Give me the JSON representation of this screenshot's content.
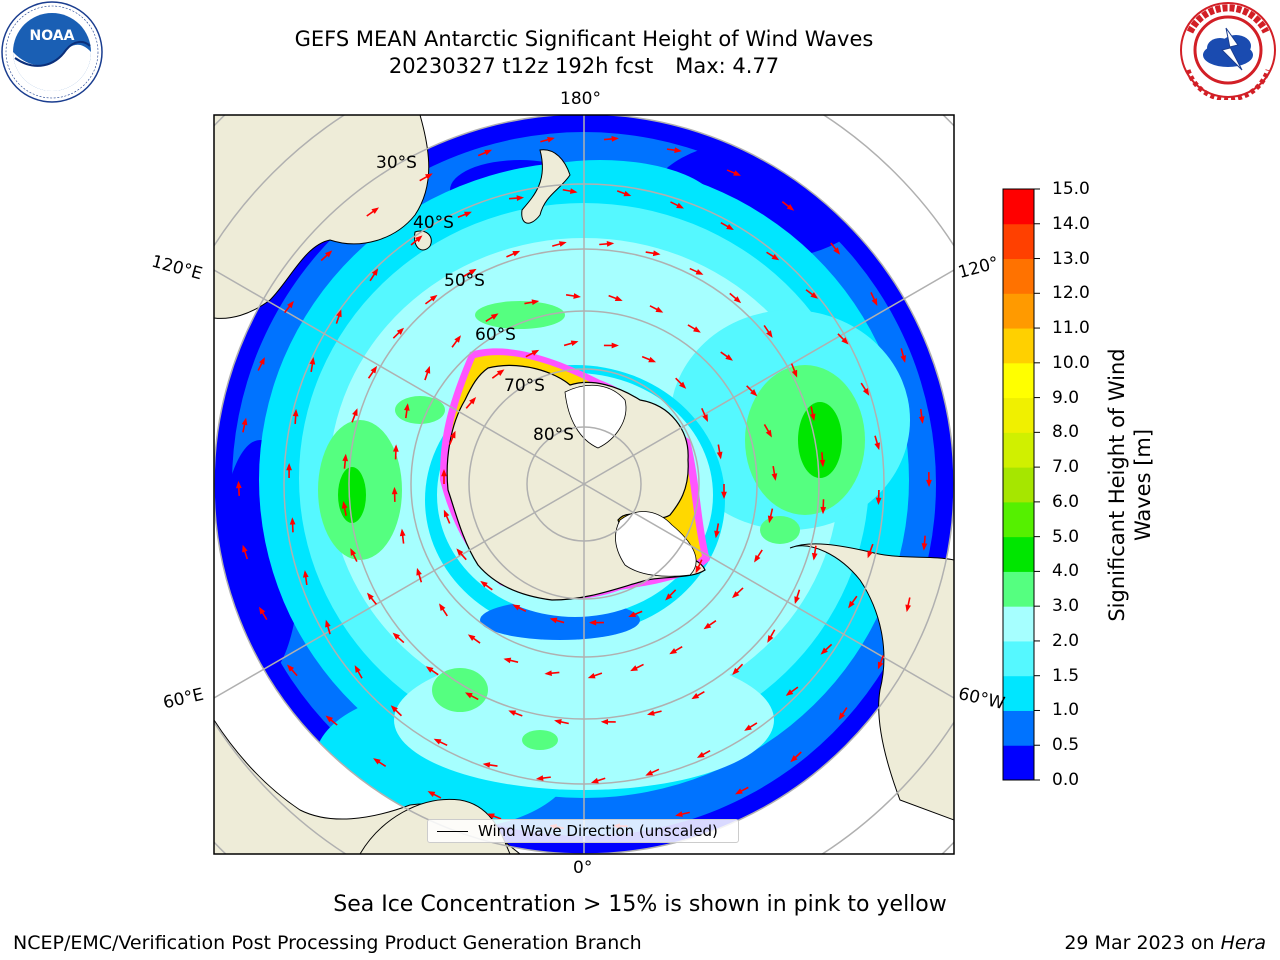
{
  "title": {
    "line1": "GEFS MEAN Antarctic Significant Height of Wind Waves",
    "date": "20230327 t12z 192h fcst",
    "max": "Max: 4.77"
  },
  "logos": {
    "left": {
      "icon": "noaa-logo",
      "text": "NOAA"
    },
    "right": {
      "icon": "national-weather-service-logo"
    }
  },
  "map": {
    "projection": "south-polar-stereographic",
    "lon_labels": [
      "180°",
      "120°E",
      "120°",
      "60°E",
      "60°W",
      "0°"
    ],
    "lat_labels": [
      "30°S",
      "40°S",
      "50°S",
      "60°S",
      "70°S",
      "80°S"
    ],
    "legend_text": "Wind Wave Direction (unscaled)",
    "arrow_color": "#ff0000",
    "land_color": "#eeecd8",
    "ice_colors": [
      "#ff55ff",
      "#ffd800"
    ]
  },
  "colorbar": {
    "title": "Significant Height of Wind Waves [m]",
    "title_line1": "Significant Height of Wind",
    "title_line2": "Waves [m]",
    "ticks": [
      "0.0",
      "0.5",
      "1.0",
      "1.5",
      "2.0",
      "3.0",
      "4.0",
      "5.0",
      "6.0",
      "7.0",
      "8.0",
      "9.0",
      "10.0",
      "11.0",
      "12.0",
      "13.0",
      "14.0",
      "15.0"
    ],
    "colors": [
      "#0000ff",
      "#0073ff",
      "#00e6ff",
      "#55f8ff",
      "#a6ffff",
      "#55ff80",
      "#00e600",
      "#55f000",
      "#a6e600",
      "#d0f000",
      "#f0f000",
      "#ffff00",
      "#ffd000",
      "#ff9a00",
      "#ff7200",
      "#ff4000",
      "#ff0000"
    ]
  },
  "caption": "Sea Ice Concentration > 15% is shown in pink to yellow",
  "credit": "NCEP/EMC/Verification Post Processing Product Generation Branch",
  "stamp": {
    "date": "29 Mar 2023 on",
    "machine": "Hera"
  }
}
